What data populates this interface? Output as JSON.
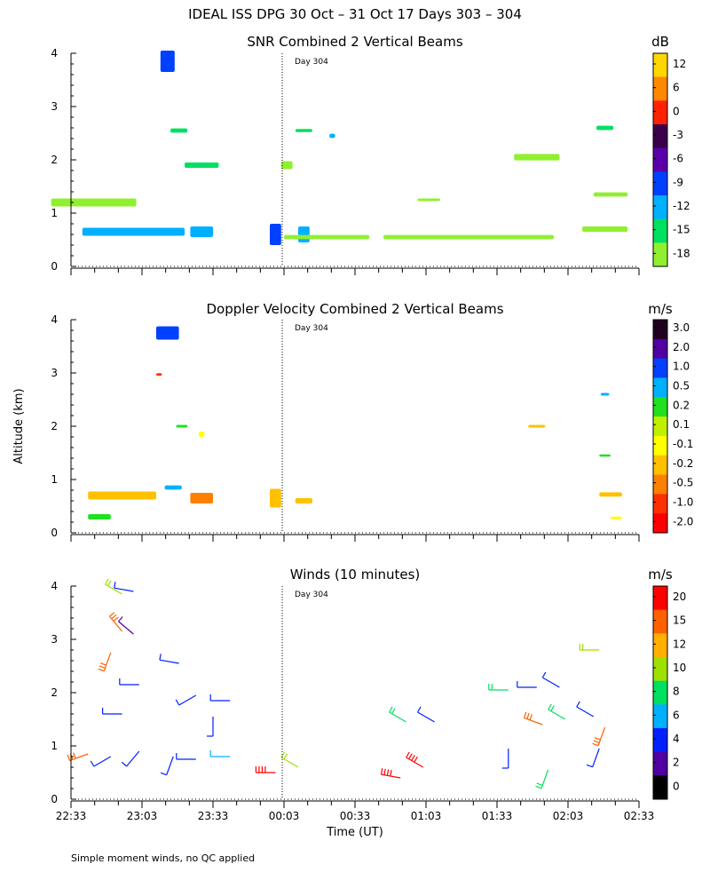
{
  "figure": {
    "title": "IDEAL ISS DPG  30 Oct – 31 Oct 17 Days 303 – 304",
    "xlabel": "Time (UT)",
    "ylabel": "Altitude (km)",
    "footnote": "Simple moment winds, no QC applied",
    "x_ticks": [
      "22:33",
      "23:03",
      "23:33",
      "00:03",
      "00:33",
      "01:03",
      "01:33",
      "02:03",
      "02:33"
    ],
    "y_ticks": [
      "0",
      "1",
      "2",
      "3",
      "4"
    ],
    "day_marker": "Day 304"
  },
  "chart_data": [
    {
      "type": "heatmap",
      "title": "SNR Combined 2 Vertical Beams",
      "unit": "dB",
      "ylabel": "Altitude (km)",
      "ylim": [
        0,
        4
      ],
      "colorbar_ticks": [
        "12",
        "6",
        "0",
        "-3",
        "-6",
        "-9",
        "-12",
        "-15",
        "-18"
      ],
      "colorbar_colors": [
        "#ffd700",
        "#ff8800",
        "#ff2200",
        "#3a004a",
        "#5a00aa",
        "#0040ff",
        "#00b0ff",
        "#00e060",
        "#90f030"
      ],
      "patches": [
        {
          "t": 0.17,
          "z": 3.85,
          "v": -9,
          "w": 0.025,
          "h": 0.4
        },
        {
          "t": 0.11,
          "z": 0.65,
          "v": -12,
          "w": 0.18,
          "h": 0.15
        },
        {
          "t": 0.23,
          "z": 0.65,
          "v": -12,
          "w": 0.04,
          "h": 0.2
        },
        {
          "t": 0.36,
          "z": 0.6,
          "v": -9,
          "w": 0.02,
          "h": 0.4
        },
        {
          "t": 0.41,
          "z": 0.6,
          "v": -12,
          "w": 0.02,
          "h": 0.3
        },
        {
          "t": 0.04,
          "z": 1.2,
          "v": -18,
          "w": 0.15,
          "h": 0.15
        },
        {
          "t": 0.23,
          "z": 1.9,
          "v": -15,
          "w": 0.06,
          "h": 0.1
        },
        {
          "t": 0.19,
          "z": 2.55,
          "v": -15,
          "w": 0.03,
          "h": 0.08
        },
        {
          "t": 0.41,
          "z": 2.55,
          "v": -15,
          "w": 0.03,
          "h": 0.06
        },
        {
          "t": 0.46,
          "z": 2.45,
          "v": -12,
          "w": 0.01,
          "h": 0.08
        },
        {
          "t": 0.38,
          "z": 1.9,
          "v": -18,
          "w": 0.02,
          "h": 0.15
        },
        {
          "t": 0.63,
          "z": 1.25,
          "v": -18,
          "w": 0.04,
          "h": 0.05
        },
        {
          "t": 0.82,
          "z": 2.05,
          "v": -18,
          "w": 0.08,
          "h": 0.12
        },
        {
          "t": 0.95,
          "z": 1.35,
          "v": -18,
          "w": 0.06,
          "h": 0.08
        },
        {
          "t": 0.94,
          "z": 2.6,
          "v": -15,
          "w": 0.03,
          "h": 0.08
        },
        {
          "t": 0.94,
          "z": 0.7,
          "v": -18,
          "w": 0.08,
          "h": 0.1
        },
        {
          "t": 0.7,
          "z": 0.55,
          "v": -18,
          "w": 0.3,
          "h": 0.08
        },
        {
          "t": 0.45,
          "z": 0.55,
          "v": -18,
          "w": 0.15,
          "h": 0.08
        }
      ]
    },
    {
      "type": "heatmap",
      "title": "Doppler Velocity Combined 2 Vertical Beams",
      "unit": "m/s",
      "ylabel": "Altitude (km)",
      "ylim": [
        0,
        4
      ],
      "colorbar_ticks": [
        "3.0",
        "2.0",
        "1.0",
        "0.5",
        "0.2",
        "0.1",
        "-0.1",
        "-0.2",
        "-0.5",
        "-1.0",
        "-2.0"
      ],
      "colorbar_colors": [
        "#200020",
        "#5000a0",
        "#0040ff",
        "#00b0ff",
        "#20e020",
        "#c0f000",
        "#ffff00",
        "#ffc000",
        "#ff8000",
        "#ff3000",
        "#ff0000"
      ],
      "patches": [
        {
          "t": 0.17,
          "z": 3.75,
          "v": 1.0,
          "w": 0.04,
          "h": 0.25
        },
        {
          "t": 0.155,
          "z": 2.97,
          "v": -1.0,
          "w": 0.01,
          "h": 0.05
        },
        {
          "t": 0.09,
          "z": 0.7,
          "v": -0.2,
          "w": 0.12,
          "h": 0.15
        },
        {
          "t": 0.23,
          "z": 0.65,
          "v": -0.5,
          "w": 0.04,
          "h": 0.2
        },
        {
          "t": 0.05,
          "z": 0.3,
          "v": 0.2,
          "w": 0.04,
          "h": 0.1
        },
        {
          "t": 0.36,
          "z": 0.65,
          "v": -0.2,
          "w": 0.02,
          "h": 0.35
        },
        {
          "t": 0.41,
          "z": 0.6,
          "v": -0.2,
          "w": 0.03,
          "h": 0.1
        },
        {
          "t": 0.18,
          "z": 0.85,
          "v": 0.5,
          "w": 0.03,
          "h": 0.08
        },
        {
          "t": 0.195,
          "z": 2.0,
          "v": 0.2,
          "w": 0.02,
          "h": 0.05
        },
        {
          "t": 0.23,
          "z": 1.85,
          "v": -0.1,
          "w": 0.01,
          "h": 0.1
        },
        {
          "t": 0.82,
          "z": 2.0,
          "v": -0.2,
          "w": 0.03,
          "h": 0.05
        },
        {
          "t": 0.94,
          "z": 2.6,
          "v": 0.5,
          "w": 0.015,
          "h": 0.05
        },
        {
          "t": 0.94,
          "z": 1.45,
          "v": 0.2,
          "w": 0.02,
          "h": 0.04
        },
        {
          "t": 0.95,
          "z": 0.72,
          "v": -0.2,
          "w": 0.04,
          "h": 0.08
        },
        {
          "t": 0.96,
          "z": 0.28,
          "v": -0.1,
          "w": 0.02,
          "h": 0.05
        }
      ]
    },
    {
      "type": "scatter",
      "title": "Winds (10 minutes)",
      "unit": "m/s",
      "ylabel": "Altitude (km)",
      "ylim": [
        0,
        4
      ],
      "colorbar_ticks": [
        "20",
        "15",
        "12",
        "10",
        "8",
        "6",
        "4",
        "2",
        "0"
      ],
      "colorbar_colors": [
        "#ff0000",
        "#ff6000",
        "#ffb000",
        "#a0e000",
        "#00e060",
        "#00b0ff",
        "#0020ff",
        "#5000a0",
        "#000000"
      ],
      "barbs": [
        {
          "t": 0.09,
          "z": 3.85,
          "dir": 300,
          "spd": 10
        },
        {
          "t": 0.11,
          "z": 3.9,
          "dir": 280,
          "spd": 4
        },
        {
          "t": 0.09,
          "z": 3.15,
          "dir": 320,
          "spd": 15
        },
        {
          "t": 0.11,
          "z": 3.1,
          "dir": 310,
          "spd": 2
        },
        {
          "t": 0.07,
          "z": 2.75,
          "dir": 200,
          "spd": 15
        },
        {
          "t": 0.12,
          "z": 2.15,
          "dir": 270,
          "spd": 4
        },
        {
          "t": 0.19,
          "z": 2.55,
          "dir": 280,
          "spd": 4
        },
        {
          "t": 0.22,
          "z": 1.95,
          "dir": 240,
          "spd": 4
        },
        {
          "t": 0.28,
          "z": 1.85,
          "dir": 270,
          "spd": 4
        },
        {
          "t": 0.09,
          "z": 1.6,
          "dir": 270,
          "spd": 4
        },
        {
          "t": 0.25,
          "z": 1.55,
          "dir": 180,
          "spd": 4
        },
        {
          "t": 0.03,
          "z": 0.85,
          "dir": 250,
          "spd": 15
        },
        {
          "t": 0.07,
          "z": 0.8,
          "dir": 240,
          "spd": 4
        },
        {
          "t": 0.12,
          "z": 0.9,
          "dir": 220,
          "spd": 4
        },
        {
          "t": 0.18,
          "z": 0.8,
          "dir": 200,
          "spd": 4
        },
        {
          "t": 0.22,
          "z": 0.75,
          "dir": 270,
          "spd": 4
        },
        {
          "t": 0.28,
          "z": 0.8,
          "dir": 270,
          "spd": 6
        },
        {
          "t": 0.36,
          "z": 0.5,
          "dir": 270,
          "spd": 20
        },
        {
          "t": 0.4,
          "z": 0.6,
          "dir": 300,
          "spd": 10
        },
        {
          "t": 0.58,
          "z": 0.4,
          "dir": 280,
          "spd": 20
        },
        {
          "t": 0.62,
          "z": 0.6,
          "dir": 300,
          "spd": 20
        },
        {
          "t": 0.59,
          "z": 1.45,
          "dir": 300,
          "spd": 8
        },
        {
          "t": 0.64,
          "z": 1.45,
          "dir": 300,
          "spd": 4
        },
        {
          "t": 0.77,
          "z": 2.05,
          "dir": 270,
          "spd": 8
        },
        {
          "t": 0.82,
          "z": 2.1,
          "dir": 270,
          "spd": 4
        },
        {
          "t": 0.86,
          "z": 2.1,
          "dir": 300,
          "spd": 4
        },
        {
          "t": 0.83,
          "z": 1.4,
          "dir": 290,
          "spd": 15
        },
        {
          "t": 0.87,
          "z": 1.5,
          "dir": 300,
          "spd": 8
        },
        {
          "t": 0.92,
          "z": 1.55,
          "dir": 300,
          "spd": 4
        },
        {
          "t": 0.94,
          "z": 1.35,
          "dir": 200,
          "spd": 15
        },
        {
          "t": 0.93,
          "z": 2.8,
          "dir": 270,
          "spd": 10
        },
        {
          "t": 0.77,
          "z": 0.95,
          "dir": 180,
          "spd": 4
        },
        {
          "t": 0.84,
          "z": 0.55,
          "dir": 200,
          "spd": 8
        },
        {
          "t": 0.93,
          "z": 0.95,
          "dir": 200,
          "spd": 4
        }
      ]
    }
  ]
}
